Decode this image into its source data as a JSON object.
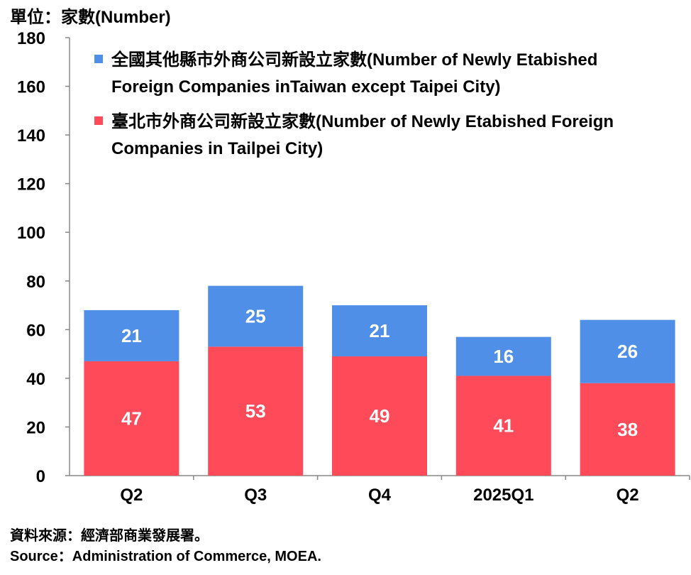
{
  "unit_label": "單位：家數(Number)",
  "source": {
    "line1": "資料來源：經濟部商業發展署。",
    "line2": "Source：Administration of Commerce, MOEA."
  },
  "colors": {
    "other_cities": "#4f8fe8",
    "taipei": "#ff4a5a",
    "axis": "#888888"
  },
  "chart_data": {
    "type": "bar",
    "stacked": true,
    "title": "",
    "xlabel": "",
    "ylabel": "單位：家數(Number)",
    "ylim": [
      0,
      180
    ],
    "yticks": [
      0,
      20,
      40,
      60,
      80,
      100,
      120,
      140,
      160,
      180
    ],
    "grid": false,
    "legend_position": "top-left",
    "categories": [
      "Q2",
      "Q3",
      "Q4",
      "2025Q1",
      "Q2"
    ],
    "series": [
      {
        "name": "臺北市外商公司新設立家數(Number of Newly Etabished Foreign",
        "name_line2": "Companies in Tailpei City)",
        "color": "#ff4a5a",
        "values": [
          47,
          53,
          49,
          41,
          38
        ]
      },
      {
        "name": "全國其他縣市外商公司新設立家數(Number of Newly Etabished",
        "name_line2": "Foreign Companies inTaiwan except Taipei City)",
        "color": "#4f8fe8",
        "values": [
          21,
          25,
          21,
          16,
          26
        ]
      }
    ]
  }
}
